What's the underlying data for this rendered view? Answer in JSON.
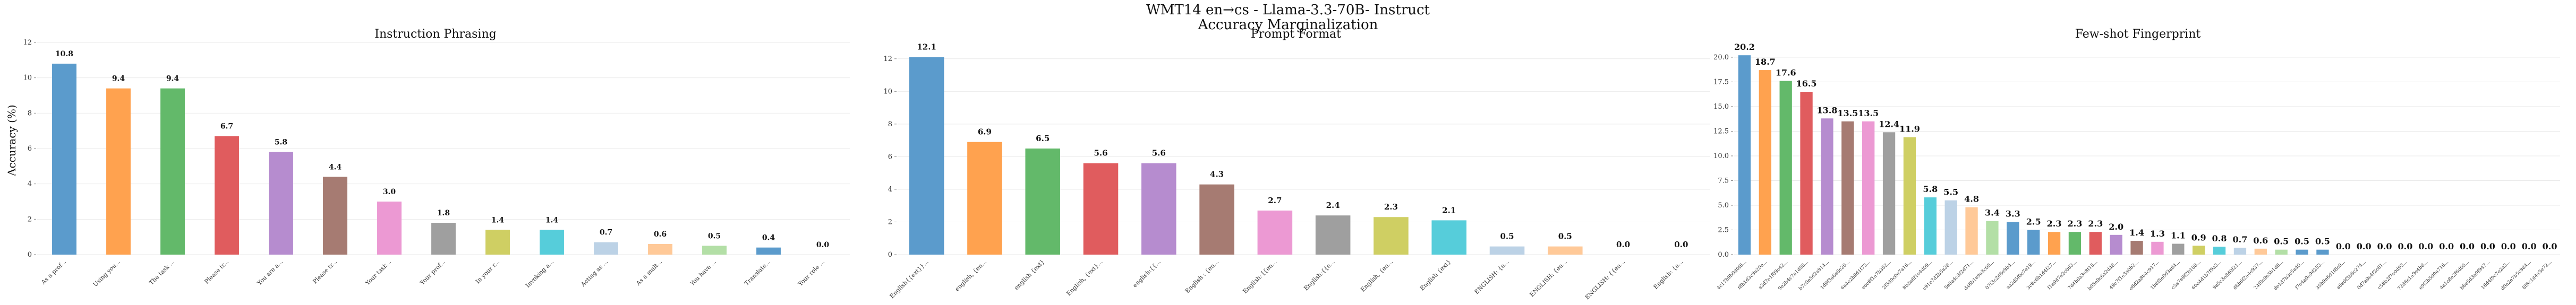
{
  "suptitle_line1": "WMT14 en→cs - Llama-3.3-70B- Instruct",
  "suptitle_line2": "Accuracy Marginalization",
  "ylabel": "Accuracy (%)",
  "palette": [
    "#5b9bcc",
    "#ffa24f",
    "#63b96a",
    "#e05c5e",
    "#b68ccf",
    "#a67b72",
    "#ec99d3",
    "#9f9f9f",
    "#cfcf63",
    "#56cdda",
    "#bcd2e6",
    "#ffc998",
    "#b3dfa6",
    "#5b9bcc"
  ],
  "chart_data": [
    {
      "type": "bar",
      "title": "Instruction Phrasing",
      "ylim": [
        0,
        12
      ],
      "yticks": [
        0,
        2,
        4,
        6,
        8,
        10,
        12
      ],
      "categories": [
        "As a prof...",
        "Using you...",
        "The task ...",
        "Please tr...",
        "You are a...",
        "Please tr...",
        "Your task...",
        "Your prof...",
        "In your r...",
        "Invoking a...",
        "Acting as ...",
        "As a mult...",
        "You have ...",
        "Translate...",
        "Your role ..."
      ],
      "values": [
        10.8,
        9.4,
        9.4,
        6.7,
        5.8,
        4.4,
        3.0,
        1.8,
        1.4,
        1.4,
        0.7,
        0.6,
        0.5,
        0.4,
        0.0
      ],
      "grid": "y"
    },
    {
      "type": "bar",
      "title": "Prompt Format",
      "ylim": [
        0,
        13
      ],
      "yticks": [
        0,
        2,
        4,
        6,
        8,
        10,
        12
      ],
      "categories": [
        "English{{ext}}...",
        "english, {en...",
        "english {ext}",
        "English, {ext}...",
        "english:{{...",
        "English : {en...",
        "English: [{en...",
        "English:{{e...",
        "English, {en...",
        "English {ext}",
        "ENGLISH: {e...",
        "ENGLISH: {en...",
        "ENGLISH: {{en...",
        "English: {e..."
      ],
      "values": [
        12.1,
        6.9,
        6.5,
        5.6,
        5.6,
        4.3,
        2.7,
        2.4,
        2.3,
        2.1,
        0.5,
        0.5,
        0.0,
        0.0
      ],
      "grid": "y"
    },
    {
      "type": "bar",
      "title": "Few-shot Fingerprint",
      "ylim": [
        0,
        21.5
      ],
      "yticks": [
        0.0,
        2.5,
        5.0,
        7.5,
        10.0,
        12.5,
        15.0,
        17.5,
        20.0
      ],
      "categories": [
        "4c17b9b0d0f6...",
        "f8b1d3c9a20e...",
        "a3d7e1f09c42...",
        "9e2b4c7a1d58...",
        "b7c0e5d2a914...",
        "1d9f3a6e8c20...",
        "6a4e2b9d1f73...",
        "e0c8f1a7b352...",
        "2f5d9c0e7a16...",
        "8b3a6f1e4d09...",
        "c91e7d2b5a38...",
        "5e0a4c8f2d71...",
        "d46b1e9a3c05...",
        "07f3c2d8e9b4...",
        "aa2d5f0c7e19...",
        "3c8e6b1d4f27...",
        "f1a9d7e2c063...",
        "7d4b0a3e8f15...",
        "b05e9c6a2d48...",
        "49c7f1e3a0b2...",
        "e6d2a8b4c917...",
        "1b8f5e0d3a64...",
        "c3a7e9f2b108...",
        "60e4d1b7f9a3...",
        "9a5c3e8d0f21...",
        "d8b6f2a4e937...",
        "24f0c9e5b1d6...",
        "8e1d7b3c5a40...",
        "f7c4a0e9d253...",
        "35b9e6d1f8c0...",
        "a6e0f3b8c274...",
        "0d7a9e4f2c61...",
        "c58b2f7e0d93...",
        "72d6c1a9e4b8...",
        "e9f3b5d0a716...",
        "4a1c8e2f6d05...",
        "b8e5d3a0f947...",
        "16d4f9c7e2a3...",
        "d0a2e7b5c984...",
        "8f6c1d4a3e72..."
      ],
      "values": [
        20.2,
        18.7,
        17.6,
        16.5,
        13.8,
        13.5,
        13.5,
        12.4,
        11.9,
        5.8,
        5.5,
        4.8,
        3.4,
        3.3,
        2.5,
        2.3,
        2.3,
        2.3,
        2.0,
        1.4,
        1.3,
        1.1,
        0.9,
        0.8,
        0.7,
        0.6,
        0.5,
        0.5,
        0.5,
        0.0,
        0.0,
        0.0,
        0.0,
        0.0,
        0.0,
        0.0,
        0.0,
        0.0,
        0.0,
        0.0
      ],
      "grid": "y"
    }
  ]
}
